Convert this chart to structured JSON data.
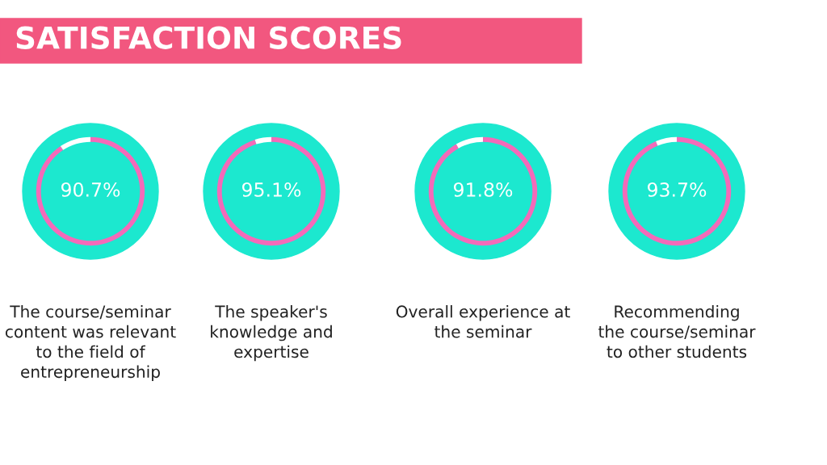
{
  "chart_data": [
    {
      "type": "donut",
      "title": "SATISFACTION SCORES",
      "categories": [
        null,
        null
      ],
      "values": [
        90.7,
        9.3
      ],
      "colors": [
        "#f46ab9",
        "#ffffff"
      ],
      "value_labels": [
        "90.7%",
        null
      ],
      "annotations": [
        "The course/seminar\ncontent was relevant\nto the field of\nentrepreneurship"
      ]
    },
    {
      "type": "donut",
      "categories": [
        null,
        null
      ],
      "values": [
        95.1,
        4.9
      ],
      "colors": [
        "#f46ab9",
        "#ffffff"
      ],
      "value_labels": [
        "95.1%",
        null
      ],
      "annotations": [
        "The speaker's\nknowledge and\nexpertise"
      ]
    },
    {
      "type": "donut",
      "categories": [
        null,
        null
      ],
      "values": [
        91.8,
        8.2
      ],
      "colors": [
        "#f46ab9",
        "#ffffff"
      ],
      "value_labels": [
        "91.8%",
        null
      ],
      "annotations": [
        "Overall experience at\nthe seminar"
      ]
    },
    {
      "type": "donut",
      "categories": [
        null,
        null
      ],
      "values": [
        93.7,
        6.3
      ],
      "colors": [
        "#f46ab9",
        "#ffffff"
      ],
      "value_labels": [
        "93.7%",
        null
      ],
      "annotations": [
        "Recommending\nthe course/seminar\nto other students"
      ]
    }
  ]
}
